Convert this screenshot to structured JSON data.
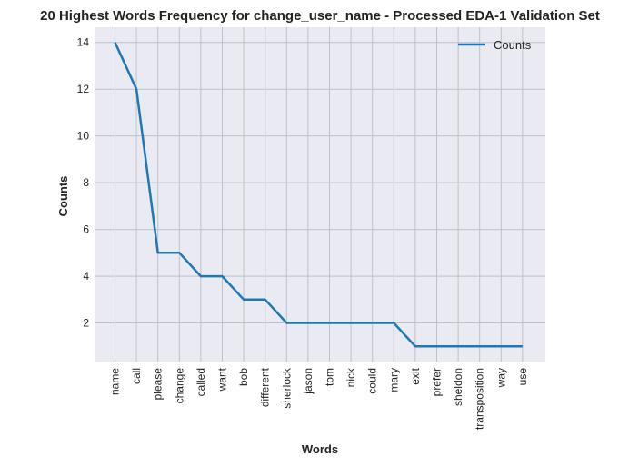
{
  "chart_data": {
    "type": "line",
    "title": "20 Highest Words Frequency for change_user_name - Processed EDA-1 Validation Set",
    "xlabel": "Words",
    "ylabel": "Counts",
    "categories": [
      "name",
      "call",
      "please",
      "change",
      "called",
      "want",
      "bob",
      "different",
      "sherlock",
      "jason",
      "tom",
      "nick",
      "could",
      "mary",
      "exit",
      "prefer",
      "sheldon",
      "transposition",
      "way",
      "use"
    ],
    "series": [
      {
        "name": "Counts",
        "values": [
          14,
          12,
          5,
          5,
          4,
          4,
          3,
          3,
          2,
          2,
          2,
          2,
          2,
          2,
          1,
          1,
          1,
          1,
          1,
          1
        ],
        "color": "#1f77b4"
      }
    ],
    "ylim": [
      0.35,
      14.65
    ],
    "yticks": [
      2,
      4,
      6,
      8,
      10,
      12,
      14
    ],
    "grid": true,
    "legend_position": "top-right",
    "background_color": "#eaeaf2",
    "grid_color": "#c0c0c8"
  }
}
